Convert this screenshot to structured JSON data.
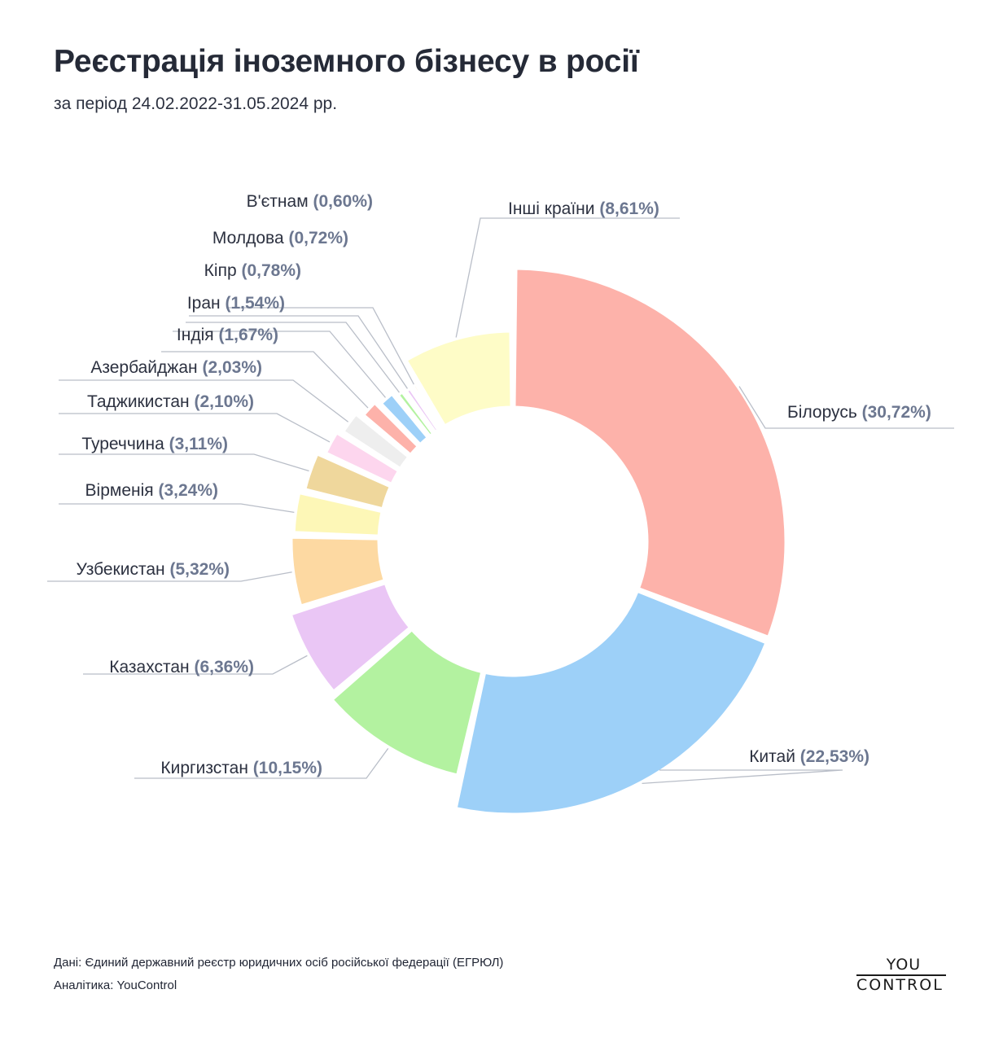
{
  "header": {
    "title": "Реєстрація іноземного бізнесу в росії",
    "subtitle": "за період 24.02.2022-31.05.2024 рр."
  },
  "chart_data": {
    "type": "pie",
    "variant": "donut",
    "slices": [
      {
        "name": "Білорусь",
        "value": 30.72,
        "label": "(30,72%)",
        "color": "#fdb2aa"
      },
      {
        "name": "Китай",
        "value": 22.53,
        "label": "(22,53%)",
        "color": "#9dd0f8"
      },
      {
        "name": "Киргизстан",
        "value": 10.15,
        "label": "(10,15%)",
        "color": "#b3f2a0"
      },
      {
        "name": "Казахстан",
        "value": 6.36,
        "label": "(6,36%)",
        "color": "#eac6f5"
      },
      {
        "name": "Узбекистан",
        "value": 5.32,
        "label": "(5,32%)",
        "color": "#fdd9a2"
      },
      {
        "name": "Вірменія",
        "value": 3.24,
        "label": "(3,24%)",
        "color": "#fdf7b7"
      },
      {
        "name": "Туреччина",
        "value": 3.11,
        "label": "(3,11%)",
        "color": "#efd79c"
      },
      {
        "name": "Таджикистан",
        "value": 2.1,
        "label": "(2,10%)",
        "color": "#fdd6ee"
      },
      {
        "name": "Азербайджан",
        "value": 2.03,
        "label": "(2,03%)",
        "color": "#eeeeee"
      },
      {
        "name": "Індія",
        "value": 1.67,
        "label": "(1,67%)",
        "color": "#fdb2aa"
      },
      {
        "name": "Іран",
        "value": 1.54,
        "label": "(1,54%)",
        "color": "#9dd0f8"
      },
      {
        "name": "Кіпр",
        "value": 0.78,
        "label": "(0,78%)",
        "color": "#b3f2a0"
      },
      {
        "name": "Молдова",
        "value": 0.72,
        "label": "(0,72%)",
        "color": "#eac6f5"
      },
      {
        "name": "В'єтнам",
        "value": 0.6,
        "label": "(0,60%)",
        "color": "#fdd9a2"
      },
      {
        "name": "Інші країни",
        "value": 8.61,
        "label": "(8,61%)",
        "color": "#fefcc7"
      }
    ],
    "legend": "callout labels"
  },
  "footer": {
    "source": "Дані: Єдиний державний реєстр юридичних осіб російської федерації (ЕГРЮЛ)",
    "analytics": "Аналітика: YouControl"
  },
  "logo": {
    "top": "YOU",
    "bottom": "CONTROL"
  }
}
